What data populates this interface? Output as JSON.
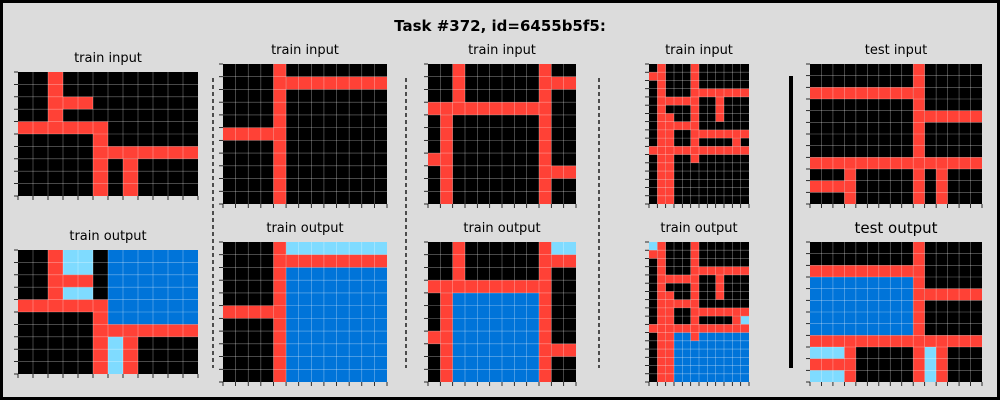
{
  "title": "Task #372, id=6455b5f5:",
  "labels": {
    "train_input": "train input",
    "train_output": "train output",
    "test_input": "test input",
    "test_output": "test output"
  },
  "colors": {
    "background": "#000000",
    "line": "#ff4136",
    "small_region": "#7fdbff",
    "large_region": "#0074d9",
    "gridline": "#ffffff",
    "page": "#dcdcdc"
  },
  "panels": [
    {
      "name": "train-1",
      "input": {
        "rows": 10,
        "cols": 12,
        "rects": [
          {
            "r0": 0,
            "c0": 2,
            "r1": 4,
            "c1": 2,
            "v": 2
          },
          {
            "r0": 2,
            "c0": 3,
            "r1": 2,
            "c1": 4,
            "v": 2
          },
          {
            "r0": 4,
            "c0": 0,
            "r1": 4,
            "c1": 5,
            "v": 2
          },
          {
            "r0": 4,
            "c0": 5,
            "r1": 9,
            "c1": 5,
            "v": 2
          },
          {
            "r0": 6,
            "c0": 6,
            "r1": 6,
            "c1": 11,
            "v": 2
          },
          {
            "r0": 7,
            "c0": 7,
            "r1": 9,
            "c1": 7,
            "v": 2
          }
        ]
      },
      "output": {
        "rows": 10,
        "cols": 12,
        "rects": [
          {
            "r0": 0,
            "c0": 3,
            "r1": 1,
            "c1": 4,
            "v": 8
          },
          {
            "r0": 3,
            "c0": 3,
            "r1": 3,
            "c1": 4,
            "v": 8
          },
          {
            "r0": 0,
            "c0": 6,
            "r1": 5,
            "c1": 11,
            "v": 1
          },
          {
            "r0": 7,
            "c0": 6,
            "r1": 9,
            "c1": 6,
            "v": 8
          },
          {
            "r0": 0,
            "c0": 2,
            "r1": 4,
            "c1": 2,
            "v": 2
          },
          {
            "r0": 2,
            "c0": 3,
            "r1": 2,
            "c1": 4,
            "v": 2
          },
          {
            "r0": 4,
            "c0": 0,
            "r1": 4,
            "c1": 5,
            "v": 2
          },
          {
            "r0": 4,
            "c0": 5,
            "r1": 9,
            "c1": 5,
            "v": 2
          },
          {
            "r0": 6,
            "c0": 6,
            "r1": 6,
            "c1": 11,
            "v": 2
          },
          {
            "r0": 7,
            "c0": 7,
            "r1": 9,
            "c1": 7,
            "v": 2
          }
        ]
      }
    },
    {
      "name": "train-2",
      "input": {
        "rows": 11,
        "cols": 13,
        "rects": [
          {
            "r0": 0,
            "c0": 4,
            "r1": 10,
            "c1": 4,
            "v": 2
          },
          {
            "r0": 1,
            "c0": 5,
            "r1": 1,
            "c1": 12,
            "v": 2
          },
          {
            "r0": 5,
            "c0": 0,
            "r1": 5,
            "c1": 3,
            "v": 2
          }
        ]
      },
      "output": {
        "rows": 11,
        "cols": 13,
        "rects": [
          {
            "r0": 0,
            "c0": 5,
            "r1": 0,
            "c1": 12,
            "v": 8
          },
          {
            "r0": 2,
            "c0": 5,
            "r1": 10,
            "c1": 12,
            "v": 1
          },
          {
            "r0": 0,
            "c0": 4,
            "r1": 10,
            "c1": 4,
            "v": 2
          },
          {
            "r0": 1,
            "c0": 5,
            "r1": 1,
            "c1": 12,
            "v": 2
          },
          {
            "r0": 5,
            "c0": 0,
            "r1": 5,
            "c1": 3,
            "v": 2
          }
        ]
      }
    },
    {
      "name": "train-3",
      "input": {
        "rows": 11,
        "cols": 12,
        "rects": [
          {
            "r0": 0,
            "c0": 2,
            "r1": 3,
            "c1": 2,
            "v": 2
          },
          {
            "r0": 3,
            "c0": 0,
            "r1": 3,
            "c1": 9,
            "v": 2
          },
          {
            "r0": 4,
            "c0": 1,
            "r1": 10,
            "c1": 1,
            "v": 2
          },
          {
            "r0": 0,
            "c0": 9,
            "r1": 10,
            "c1": 9,
            "v": 2
          },
          {
            "r0": 1,
            "c0": 10,
            "r1": 1,
            "c1": 11,
            "v": 2
          },
          {
            "r0": 7,
            "c0": 0,
            "r1": 7,
            "c1": 0,
            "v": 2
          },
          {
            "r0": 8,
            "c0": 10,
            "r1": 8,
            "c1": 11,
            "v": 2
          }
        ]
      },
      "output": {
        "rows": 11,
        "cols": 12,
        "rects": [
          {
            "r0": 0,
            "c0": 10,
            "r1": 0,
            "c1": 11,
            "v": 8
          },
          {
            "r0": 4,
            "c0": 2,
            "r1": 10,
            "c1": 8,
            "v": 1
          },
          {
            "r0": 0,
            "c0": 2,
            "r1": 3,
            "c1": 2,
            "v": 2
          },
          {
            "r0": 3,
            "c0": 0,
            "r1": 3,
            "c1": 9,
            "v": 2
          },
          {
            "r0": 4,
            "c0": 1,
            "r1": 10,
            "c1": 1,
            "v": 2
          },
          {
            "r0": 0,
            "c0": 9,
            "r1": 10,
            "c1": 9,
            "v": 2
          },
          {
            "r0": 1,
            "c0": 10,
            "r1": 1,
            "c1": 11,
            "v": 2
          },
          {
            "r0": 7,
            "c0": 0,
            "r1": 7,
            "c1": 0,
            "v": 2
          },
          {
            "r0": 8,
            "c0": 10,
            "r1": 8,
            "c1": 11,
            "v": 2
          }
        ]
      }
    },
    {
      "name": "train-4",
      "input": {
        "rows": 17,
        "cols": 12,
        "rects": [
          {
            "r0": 1,
            "c0": 0,
            "r1": 1,
            "c1": 0,
            "v": 2
          },
          {
            "r0": 0,
            "c0": 1,
            "r1": 16,
            "c1": 1,
            "v": 2
          },
          {
            "r0": 6,
            "c0": 2,
            "r1": 16,
            "c1": 2,
            "v": 2
          },
          {
            "r0": 0,
            "c0": 5,
            "r1": 11,
            "c1": 5,
            "v": 2
          },
          {
            "r0": 4,
            "c0": 2,
            "r1": 4,
            "c1": 4,
            "v": 2
          },
          {
            "r0": 7,
            "c0": 2,
            "r1": 7,
            "c1": 4,
            "v": 2
          },
          {
            "r0": 3,
            "c0": 6,
            "r1": 3,
            "c1": 11,
            "v": 2
          },
          {
            "r0": 4,
            "c0": 8,
            "r1": 6,
            "c1": 8,
            "v": 2
          },
          {
            "r0": 8,
            "c0": 6,
            "r1": 8,
            "c1": 11,
            "v": 2
          },
          {
            "r0": 9,
            "c0": 10,
            "r1": 9,
            "c1": 10,
            "v": 2
          },
          {
            "r0": 10,
            "c0": 0,
            "r1": 10,
            "c1": 11,
            "v": 2
          }
        ]
      },
      "output": {
        "rows": 17,
        "cols": 12,
        "rects": [
          {
            "r0": 0,
            "c0": 0,
            "r1": 0,
            "c1": 0,
            "v": 8
          },
          {
            "r0": 9,
            "c0": 11,
            "r1": 9,
            "c1": 11,
            "v": 8
          },
          {
            "r0": 11,
            "c0": 3,
            "r1": 16,
            "c1": 11,
            "v": 1
          },
          {
            "r0": 1,
            "c0": 0,
            "r1": 1,
            "c1": 0,
            "v": 2
          },
          {
            "r0": 0,
            "c0": 1,
            "r1": 16,
            "c1": 1,
            "v": 2
          },
          {
            "r0": 6,
            "c0": 2,
            "r1": 16,
            "c1": 2,
            "v": 2
          },
          {
            "r0": 0,
            "c0": 5,
            "r1": 11,
            "c1": 5,
            "v": 2
          },
          {
            "r0": 4,
            "c0": 2,
            "r1": 4,
            "c1": 4,
            "v": 2
          },
          {
            "r0": 7,
            "c0": 2,
            "r1": 7,
            "c1": 4,
            "v": 2
          },
          {
            "r0": 3,
            "c0": 6,
            "r1": 3,
            "c1": 11,
            "v": 2
          },
          {
            "r0": 4,
            "c0": 8,
            "r1": 6,
            "c1": 8,
            "v": 2
          },
          {
            "r0": 8,
            "c0": 6,
            "r1": 8,
            "c1": 11,
            "v": 2
          },
          {
            "r0": 9,
            "c0": 10,
            "r1": 9,
            "c1": 10,
            "v": 2
          },
          {
            "r0": 10,
            "c0": 0,
            "r1": 10,
            "c1": 11,
            "v": 2
          }
        ]
      }
    },
    {
      "name": "test",
      "input": {
        "rows": 12,
        "cols": 15,
        "rects": [
          {
            "r0": 0,
            "c0": 9,
            "r1": 11,
            "c1": 9,
            "v": 2
          },
          {
            "r0": 2,
            "c0": 0,
            "r1": 2,
            "c1": 8,
            "v": 2
          },
          {
            "r0": 4,
            "c0": 10,
            "r1": 4,
            "c1": 14,
            "v": 2
          },
          {
            "r0": 8,
            "c0": 0,
            "r1": 8,
            "c1": 14,
            "v": 2
          },
          {
            "r0": 9,
            "c0": 3,
            "r1": 11,
            "c1": 3,
            "v": 2
          },
          {
            "r0": 10,
            "c0": 0,
            "r1": 10,
            "c1": 2,
            "v": 2
          },
          {
            "r0": 9,
            "c0": 11,
            "r1": 11,
            "c1": 11,
            "v": 2
          }
        ]
      },
      "output": {
        "rows": 12,
        "cols": 15,
        "rects": [
          {
            "r0": 3,
            "c0": 0,
            "r1": 7,
            "c1": 8,
            "v": 1
          },
          {
            "r0": 9,
            "c0": 0,
            "r1": 9,
            "c1": 2,
            "v": 8
          },
          {
            "r0": 11,
            "c0": 0,
            "r1": 11,
            "c1": 2,
            "v": 8
          },
          {
            "r0": 9,
            "c0": 10,
            "r1": 11,
            "c1": 10,
            "v": 8
          },
          {
            "r0": 0,
            "c0": 9,
            "r1": 11,
            "c1": 9,
            "v": 2
          },
          {
            "r0": 2,
            "c0": 0,
            "r1": 2,
            "c1": 8,
            "v": 2
          },
          {
            "r0": 4,
            "c0": 10,
            "r1": 4,
            "c1": 14,
            "v": 2
          },
          {
            "r0": 8,
            "c0": 0,
            "r1": 8,
            "c1": 14,
            "v": 2
          },
          {
            "r0": 9,
            "c0": 3,
            "r1": 11,
            "c1": 3,
            "v": 2
          },
          {
            "r0": 10,
            "c0": 0,
            "r1": 10,
            "c1": 2,
            "v": 2
          },
          {
            "r0": 9,
            "c0": 11,
            "r1": 11,
            "c1": 11,
            "v": 2
          }
        ]
      }
    }
  ]
}
